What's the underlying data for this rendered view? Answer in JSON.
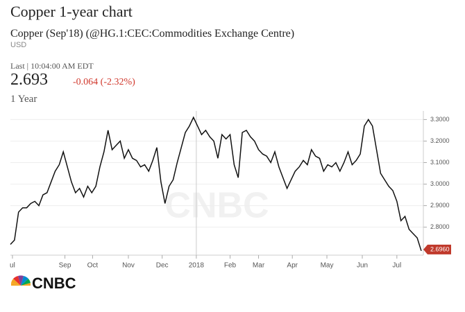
{
  "header": {
    "title": "Copper 1-year chart",
    "subtitle": "Copper (Sep'18) (@HG.1:CEC:Commodities Exchange Centre)",
    "currency": "USD",
    "last": "Last | 10:04:00 AM EDT",
    "price": "2.693",
    "change": "-0.064 (-2.32%)",
    "period": "1 Year",
    "logo": "CNBC"
  },
  "chart_data": {
    "type": "line",
    "watermark": "CNBC",
    "series": [
      {
        "color": "#111111",
        "values": [
          2.72,
          2.74,
          2.87,
          2.89,
          2.89,
          2.91,
          2.92,
          2.9,
          2.95,
          2.96,
          3.01,
          3.06,
          3.09,
          3.15,
          3.08,
          3.01,
          2.96,
          2.98,
          2.94,
          2.99,
          2.96,
          2.99,
          3.08,
          3.15,
          3.25,
          3.16,
          3.18,
          3.2,
          3.12,
          3.16,
          3.12,
          3.11,
          3.08,
          3.09,
          3.06,
          3.11,
          3.17,
          3.01,
          2.91,
          2.99,
          3.02,
          3.1,
          3.17,
          3.24,
          3.27,
          3.31,
          3.27,
          3.23,
          3.25,
          3.22,
          3.2,
          3.12,
          3.23,
          3.21,
          3.23,
          3.09,
          3.03,
          3.24,
          3.25,
          3.22,
          3.2,
          3.16,
          3.14,
          3.13,
          3.1,
          3.15,
          3.08,
          3.03,
          2.98,
          3.02,
          3.06,
          3.08,
          3.11,
          3.09,
          3.16,
          3.13,
          3.12,
          3.06,
          3.09,
          3.08,
          3.1,
          3.06,
          3.1,
          3.15,
          3.09,
          3.11,
          3.14,
          3.27,
          3.3,
          3.27,
          3.16,
          3.05,
          3.02,
          2.99,
          2.97,
          2.92,
          2.83,
          2.85,
          2.79,
          2.77,
          2.75,
          2.69
        ]
      }
    ],
    "last_price": {
      "value": 2.696,
      "label": "2.6960"
    },
    "xlim": [
      0,
      101
    ],
    "xticks": [
      {
        "value": 0.5,
        "label": "ul"
      },
      {
        "value": 13.4,
        "label": "Sep"
      },
      {
        "value": 20.2,
        "label": "Oct"
      },
      {
        "value": 29,
        "label": "Nov"
      },
      {
        "value": 37.3,
        "label": "Dec"
      },
      {
        "value": 45.7,
        "label": "2018"
      },
      {
        "value": 54,
        "label": "Feb"
      },
      {
        "value": 61,
        "label": "Mar"
      },
      {
        "value": 69.3,
        "label": "Apr"
      },
      {
        "value": 77.8,
        "label": "May"
      },
      {
        "value": 86.5,
        "label": "Jun"
      },
      {
        "value": 95,
        "label": "Jul"
      }
    ],
    "ylim": [
      2.67,
      3.34
    ],
    "yticks": [
      {
        "value": 2.8,
        "label": "2.8000"
      },
      {
        "value": 2.9,
        "label": "2.9000"
      },
      {
        "value": 3.0,
        "label": "3.0000"
      },
      {
        "value": 3.1,
        "label": "3.1000"
      },
      {
        "value": 3.2,
        "label": "3.2000"
      },
      {
        "value": 3.3,
        "label": "3.3000"
      }
    ],
    "grid": true
  }
}
